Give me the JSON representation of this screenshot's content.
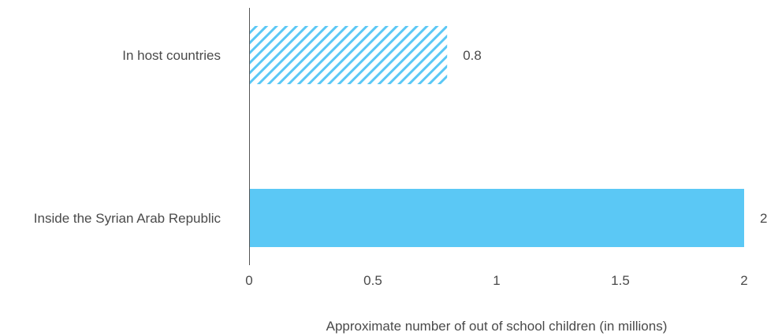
{
  "chart_data": {
    "type": "bar",
    "orientation": "horizontal",
    "categories": [
      "In host countries",
      "Inside the Syrian Arab Republic"
    ],
    "values": [
      0.8,
      2
    ],
    "data_labels": [
      "0.8",
      "2"
    ],
    "title": "",
    "xlabel": "Approximate number of out of school children (in millions)",
    "ylabel": "",
    "xlim": [
      0,
      2
    ],
    "x_ticks": [
      0,
      0.5,
      1,
      1.5,
      2
    ],
    "x_tick_labels": [
      "0",
      "0.5",
      "1",
      "1.5",
      "2"
    ],
    "grid": false,
    "legend": "none",
    "bar_styles": [
      "hatched",
      "solid"
    ],
    "colors": {
      "bar": "#5bc8f5",
      "axis": "#555555",
      "text": "#4a4a4a"
    }
  }
}
